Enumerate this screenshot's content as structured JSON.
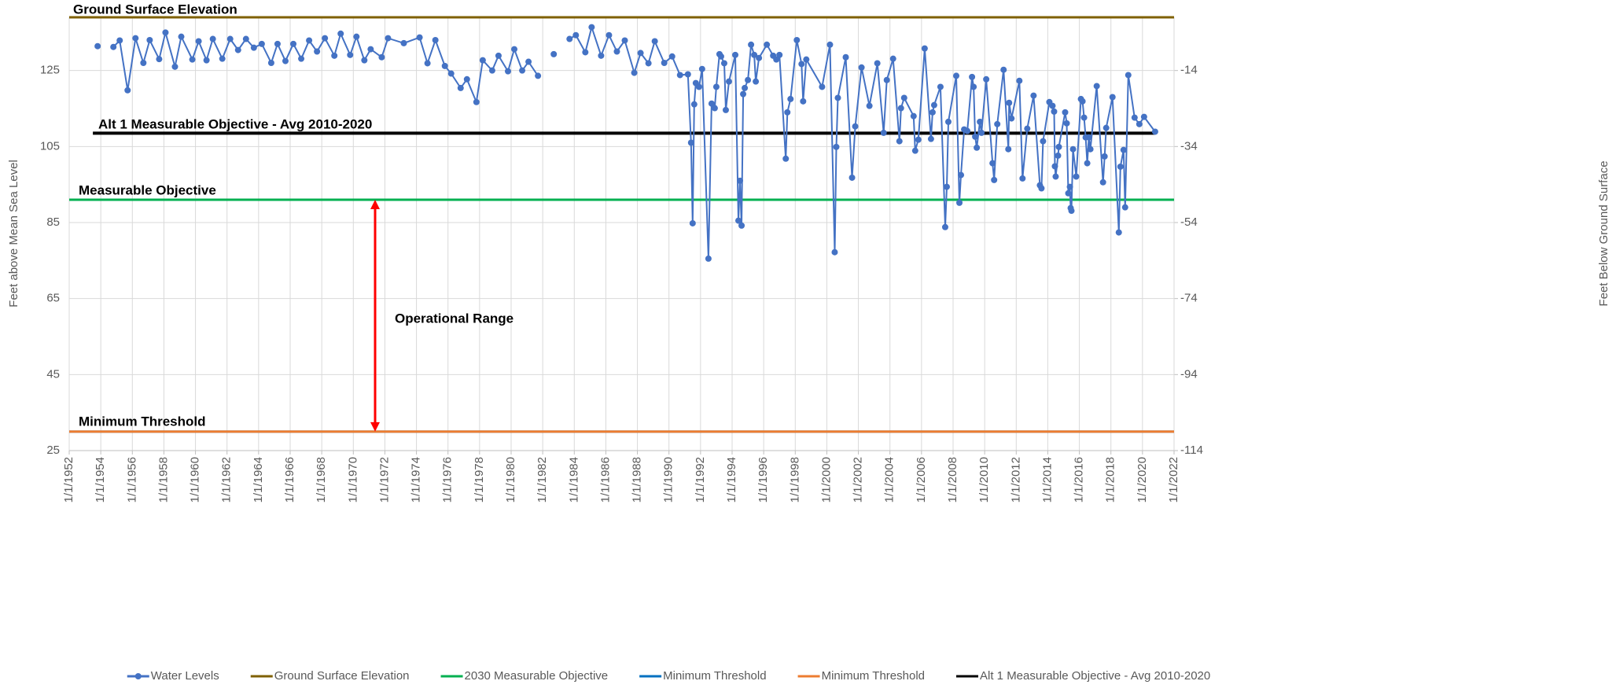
{
  "chart_data": {
    "type": "line",
    "y_label": "Feet above Mean Sea Level",
    "y2_label": "Feet Below Ground Surface",
    "xlim": [
      1952,
      2022
    ],
    "xticks": [
      {
        "value": 1952,
        "label": "1/1/1952"
      },
      {
        "value": 1954,
        "label": "1/1/1954"
      },
      {
        "value": 1956,
        "label": "1/1/1956"
      },
      {
        "value": 1958,
        "label": "1/1/1958"
      },
      {
        "value": 1960,
        "label": "1/1/1960"
      },
      {
        "value": 1962,
        "label": "1/1/1962"
      },
      {
        "value": 1964,
        "label": "1/1/1964"
      },
      {
        "value": 1966,
        "label": "1/1/1966"
      },
      {
        "value": 1968,
        "label": "1/1/1968"
      },
      {
        "value": 1970,
        "label": "1/1/1970"
      },
      {
        "value": 1972,
        "label": "1/1/1972"
      },
      {
        "value": 1974,
        "label": "1/1/1974"
      },
      {
        "value": 1976,
        "label": "1/1/1976"
      },
      {
        "value": 1978,
        "label": "1/1/1978"
      },
      {
        "value": 1980,
        "label": "1/1/1980"
      },
      {
        "value": 1982,
        "label": "1/1/1982"
      },
      {
        "value": 1984,
        "label": "1/1/1984"
      },
      {
        "value": 1986,
        "label": "1/1/1986"
      },
      {
        "value": 1988,
        "label": "1/1/1988"
      },
      {
        "value": 1990,
        "label": "1/1/1990"
      },
      {
        "value": 1992,
        "label": "1/1/1992"
      },
      {
        "value": 1994,
        "label": "1/1/1994"
      },
      {
        "value": 1996,
        "label": "1/1/1996"
      },
      {
        "value": 1998,
        "label": "1/1/1998"
      },
      {
        "value": 2000,
        "label": "1/1/2000"
      },
      {
        "value": 2002,
        "label": "1/1/2002"
      },
      {
        "value": 2004,
        "label": "1/1/2004"
      },
      {
        "value": 2006,
        "label": "1/1/2006"
      },
      {
        "value": 2008,
        "label": "1/1/2008"
      },
      {
        "value": 2010,
        "label": "1/1/2010"
      },
      {
        "value": 2012,
        "label": "1/1/2012"
      },
      {
        "value": 2014,
        "label": "1/1/2014"
      },
      {
        "value": 2016,
        "label": "1/1/2016"
      },
      {
        "value": 2018,
        "label": "1/1/2018"
      },
      {
        "value": 2020,
        "label": "1/1/2020"
      },
      {
        "value": 2022,
        "label": "1/1/2022"
      }
    ],
    "ylim": [
      25,
      139
    ],
    "yticks": [
      25,
      45,
      65,
      85,
      105,
      125
    ],
    "y2lim": [
      -114,
      0
    ],
    "y2ticks": [
      -114,
      -94,
      -74,
      -54,
      -34,
      -14
    ],
    "grid": true,
    "series": [
      {
        "name": "Water Levels",
        "color": "#4472c4",
        "x": [
          1953.8,
          null,
          1954.8,
          1955.2,
          1955.7,
          1956.2,
          1956.7,
          1957.1,
          1957.7,
          1958.1,
          1958.7,
          1959.1,
          1959.8,
          1960.2,
          1960.7,
          1961.1,
          1961.7,
          1962.2,
          1962.7,
          1963.2,
          1963.7,
          1964.2,
          1964.8,
          1965.2,
          1965.7,
          1966.2,
          1966.7,
          1967.2,
          1967.7,
          1968.2,
          1968.8,
          1969.2,
          1969.8,
          1970.2,
          1970.7,
          1971.1,
          1971.8,
          1972.2,
          1973.2,
          1974.2,
          1974.7,
          1975.2,
          1975.8,
          1976.2,
          1976.8,
          1977.2,
          1977.8,
          1978.2,
          1978.8,
          1979.2,
          1979.8,
          1980.2,
          1980.7,
          1981.1,
          1981.7,
          null,
          1982.7,
          null,
          1983.7,
          1984.1,
          1984.7,
          1985.1,
          1985.7,
          1986.2,
          1986.7,
          1987.2,
          1987.8,
          1988.2,
          1988.7,
          1989.1,
          1989.7,
          1990.2,
          1990.7,
          1991.2,
          1991.4,
          1991.5,
          1991.6,
          1991.7,
          1991.9,
          1992.1,
          1992.5,
          1992.7,
          1992.9,
          1993.0,
          1993.2,
          1993.3,
          1993.5,
          1993.6,
          1993.8,
          1994.2,
          1994.4,
          1994.5,
          1994.6,
          1994.7,
          1994.8,
          1995.0,
          1995.2,
          1995.4,
          1995.5,
          1995.7,
          1996.2,
          1996.6,
          1996.8,
          1997.0,
          1997.4,
          1997.5,
          1997.7,
          1998.1,
          1998.4,
          1998.5,
          1998.7,
          1999.7,
          2000.2,
          2000.5,
          2000.6,
          2000.7,
          2001.2,
          2001.6,
          2001.8,
          2002.2,
          2002.7,
          2003.2,
          2003.6,
          2003.8,
          2004.2,
          2004.6,
          2004.7,
          2004.9,
          2005.5,
          2005.6,
          2005.8,
          2006.2,
          2006.6,
          2006.7,
          2006.8,
          2007.2,
          2007.5,
          2007.6,
          2007.7,
          2008.2,
          2008.4,
          2008.5,
          2008.7,
          2008.9,
          2009.2,
          2009.3,
          2009.4,
          2009.5,
          2009.7,
          2009.8,
          2010.1,
          2010.5,
          2010.6,
          2010.8,
          2011.2,
          2011.5,
          2011.55,
          2011.7,
          2012.2,
          2012.4,
          2012.7,
          2013.1,
          2013.5,
          2013.6,
          2013.7,
          2014.1,
          2014.3,
          2014.4,
          2014.45,
          2014.5,
          2014.65,
          2014.7,
          2015.1,
          2015.2,
          2015.3,
          2015.4,
          2015.45,
          2015.5,
          2015.6,
          2015.8,
          2016.1,
          2016.2,
          2016.3,
          2016.4,
          2016.5,
          2016.6,
          2016.7,
          2017.1,
          2017.5,
          2017.6,
          2017.7,
          2018.1,
          2018.5,
          2018.6,
          2018.8,
          2018.9,
          2019.1,
          2019.5,
          2019.8,
          2020.1,
          2020.8
        ],
        "values": [
          131.4,
          null,
          131.2,
          132.9,
          119.8,
          133.5,
          127,
          133,
          128,
          135,
          126,
          133.9,
          127.9,
          132.7,
          127.7,
          133.3,
          128.1,
          133.3,
          130.4,
          133.3,
          131,
          132,
          127,
          132,
          127.5,
          132,
          128.1,
          132.9,
          130,
          133.5,
          128.9,
          134.7,
          129.1,
          133.9,
          127.7,
          130.6,
          128.5,
          133.5,
          132.2,
          133.7,
          126.9,
          133,
          126.2,
          124.2,
          120.4,
          122.7,
          116.7,
          127.7,
          125,
          128.9,
          124.8,
          130.6,
          125,
          127.3,
          123.6,
          null,
          129.3,
          null,
          133.3,
          134.3,
          129.8,
          136.4,
          128.9,
          134.3,
          130,
          132.9,
          124.4,
          129.6,
          126.9,
          132.7,
          127,
          128.7,
          123.8,
          124,
          106,
          84.8,
          116.1,
          121.7,
          120.7,
          125.4,
          75.5,
          116.3,
          115.1,
          120.7,
          129.3,
          128.7,
          126.9,
          114.6,
          122.1,
          129.1,
          85.5,
          96,
          84.2,
          118.8,
          120.4,
          122.5,
          131.8,
          129.1,
          122.1,
          128.3,
          131.8,
          128.9,
          127.9,
          129.1,
          101.8,
          114,
          117.5,
          133,
          126.7,
          116.9,
          127.9,
          120.7,
          131.8,
          77.2,
          104.9,
          117.8,
          128.5,
          96.8,
          110.3,
          125.8,
          115.7,
          126.9,
          108.6,
          122.5,
          128.1,
          106.4,
          115.1,
          117.8,
          113,
          103.9,
          106.8,
          130.8,
          107,
          114,
          115.9,
          120.7,
          83.8,
          94.4,
          111.5,
          123.6,
          90.2,
          97.5,
          109.5,
          109.1,
          123.3,
          120.7,
          107.6,
          104.7,
          111.5,
          108.6,
          122.7,
          100.6,
          96.2,
          110.9,
          125.2,
          104.3,
          116.5,
          112.4,
          122.3,
          96.6,
          109.7,
          118.4,
          94.8,
          94,
          106.4,
          116.7,
          115.7,
          114.2,
          99.8,
          97.1,
          102.6,
          104.9,
          114,
          111.1,
          92.7,
          94.4,
          88.8,
          88.1,
          104.3,
          97.1,
          117.5,
          116.9,
          112.6,
          107.4,
          100.6,
          107.4,
          104.3,
          120.9,
          95.6,
          102.4,
          109.9,
          118,
          82.4,
          99.7,
          104.1,
          89,
          123.8,
          112.6,
          110.9,
          112.8,
          108.9
        ]
      }
    ],
    "reference_lines": [
      {
        "name": "Ground Surface Elevation",
        "value": 139,
        "color": "#7f6000"
      },
      {
        "name": "2030 Measurable Objective",
        "value": 91,
        "color": "#00b050"
      },
      {
        "name": "Minimum Threshold",
        "value": 30,
        "color": "#0070c0"
      },
      {
        "name": "Minimum Threshold",
        "value": 30,
        "color": "#ed7d31"
      },
      {
        "name": "Alt 1 Measurable Objective - Avg 2010-2020",
        "value": 108.5,
        "color": "#000000",
        "x": [
          1953.5,
          2020.8
        ]
      }
    ],
    "annotations": [
      "Ground Surface Elevation",
      "Alt 1 Measurable Objective - Avg 2010-2020",
      "Measurable Objective",
      "Minimum Threshold",
      "Operational Range"
    ]
  }
}
